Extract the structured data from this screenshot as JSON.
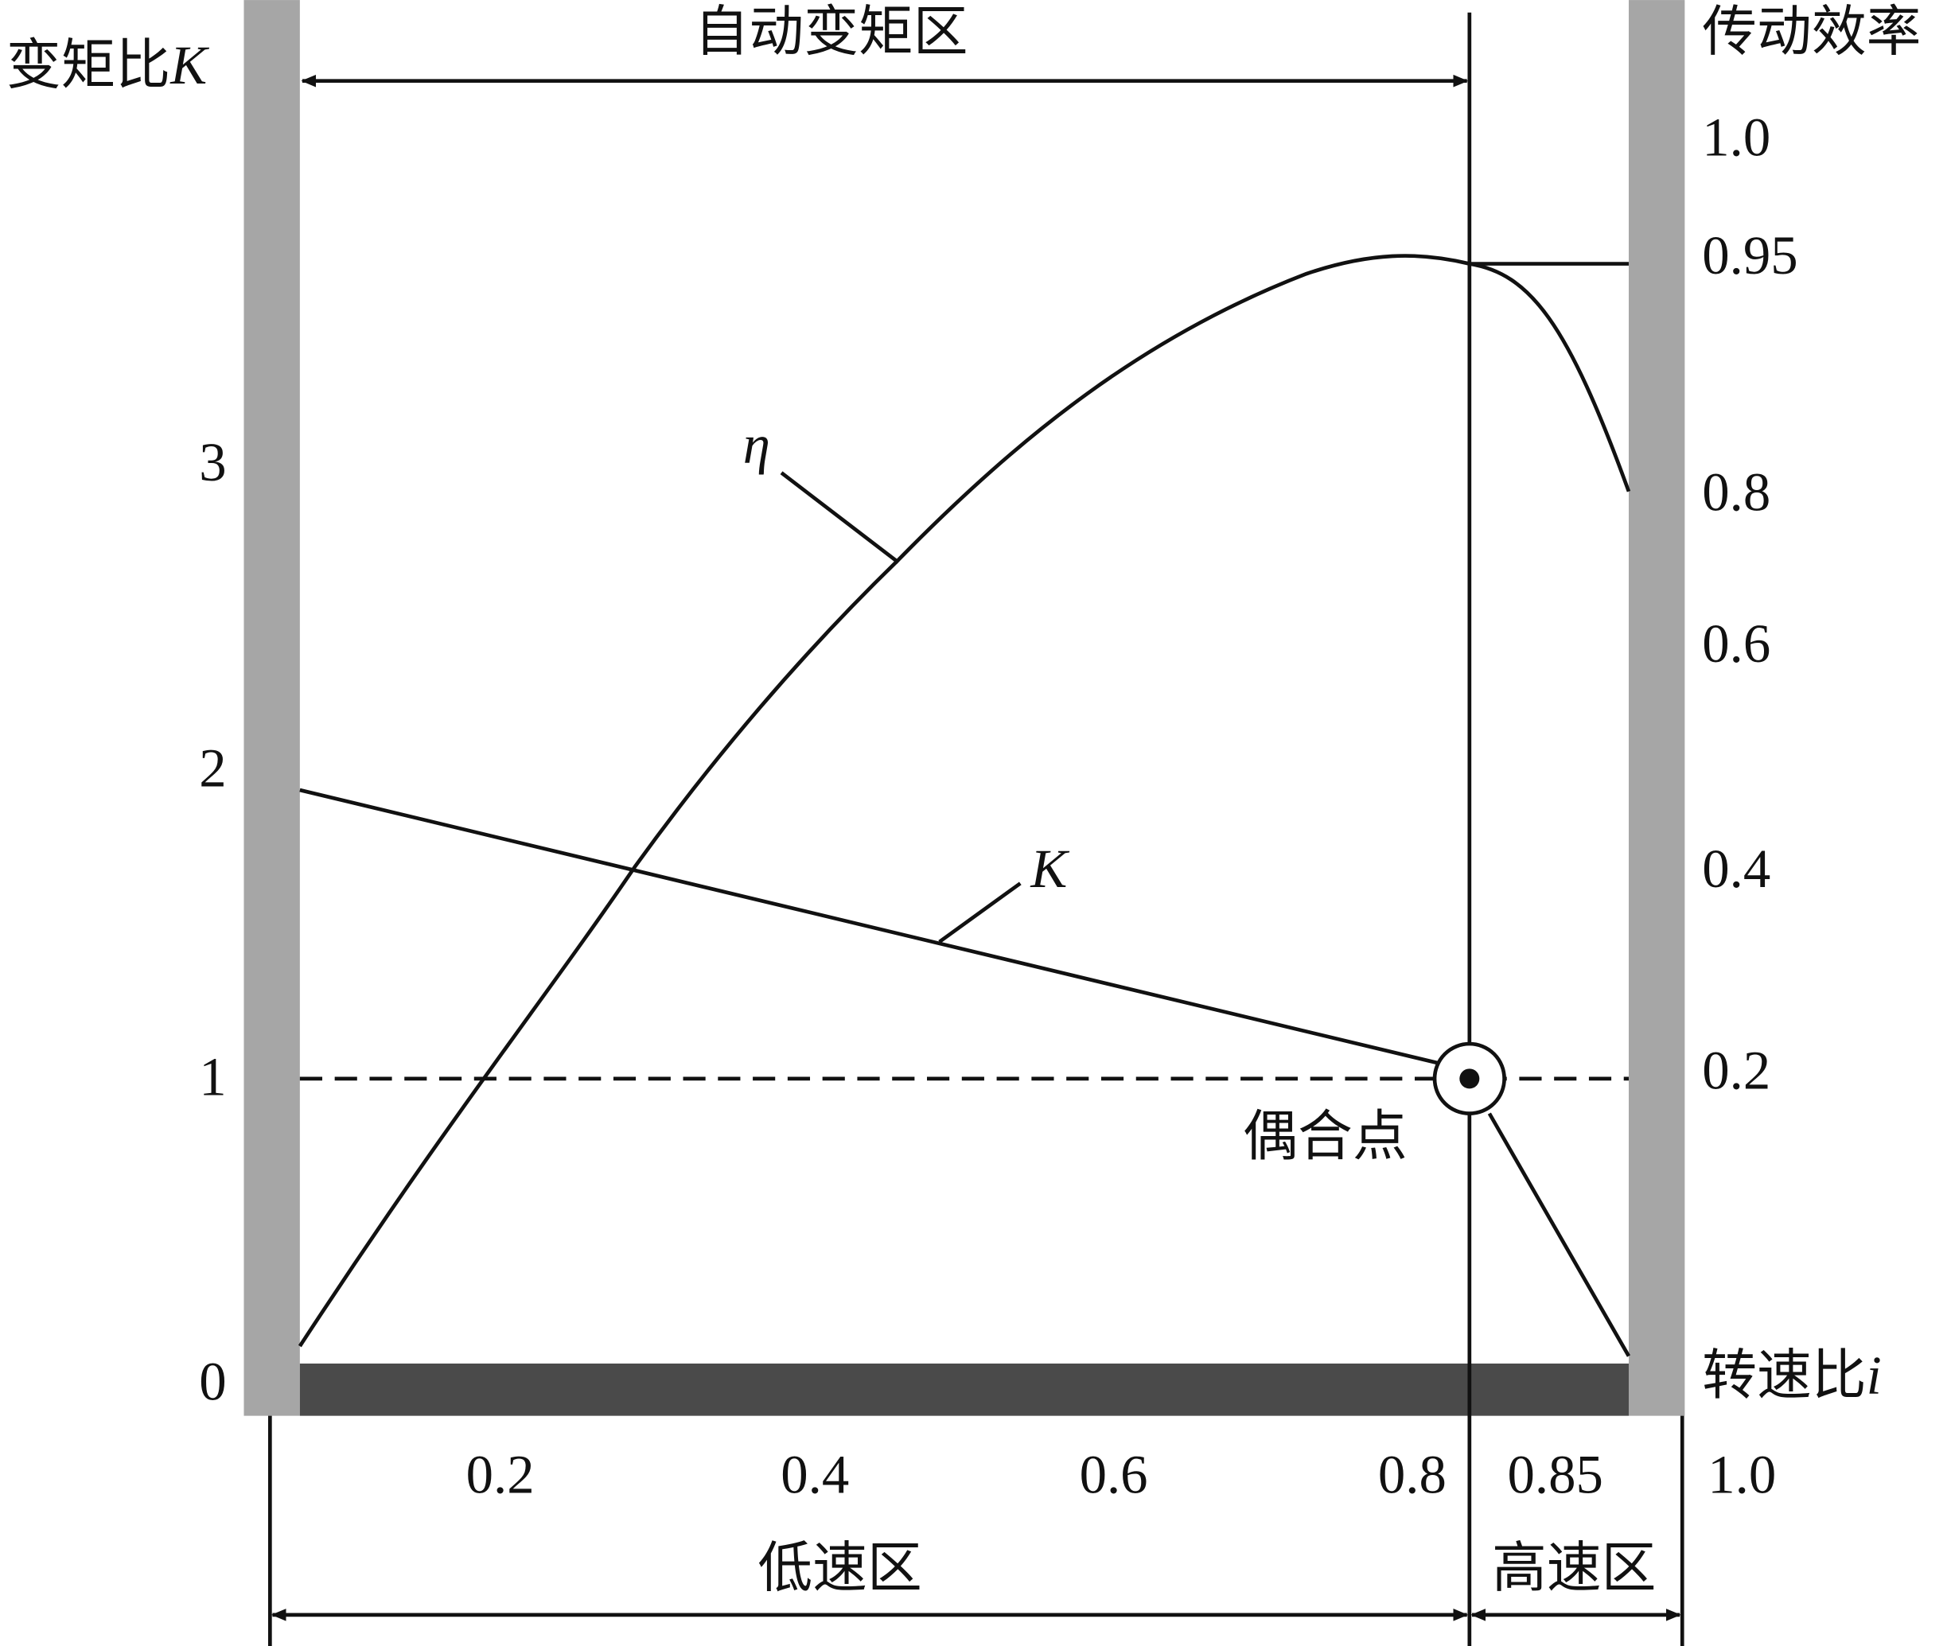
{
  "title": "自动变矩区",
  "left_axis": {
    "label": "变矩比",
    "label_symbol": "K",
    "ticks": [
      "0",
      "1",
      "2",
      "3"
    ]
  },
  "right_axis": {
    "label": "传动效率",
    "ticks": [
      "1.0",
      "0.95",
      "0.8",
      "0.6",
      "0.4",
      "0.2"
    ]
  },
  "bottom_axis": {
    "label": "转速比",
    "label_symbol": "i",
    "ticks": [
      "0.2",
      "0.4",
      "0.6",
      "0.8",
      "0.85",
      "1.0"
    ]
  },
  "curves": {
    "efficiency": "η",
    "ratio": "K"
  },
  "coupling_point": "偶合点",
  "zones": {
    "low": "低速区",
    "high": "高速区"
  }
}
